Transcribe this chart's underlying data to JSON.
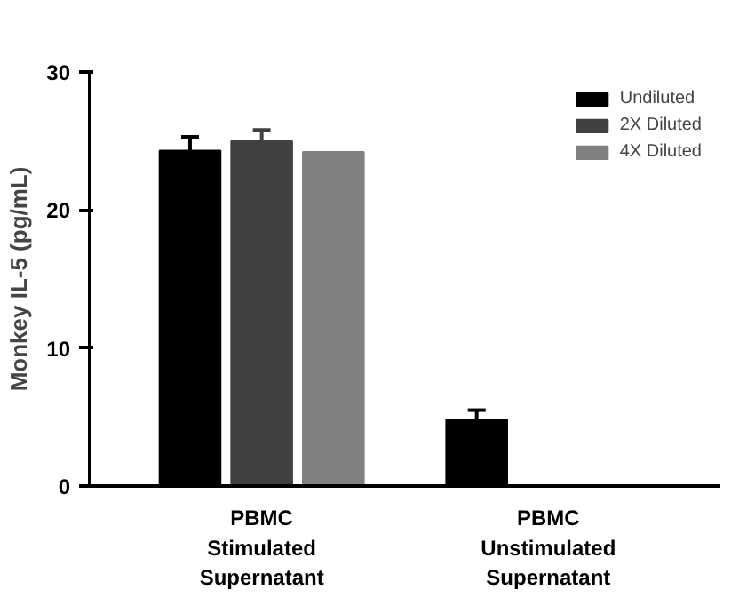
{
  "chart_data": {
    "type": "bar",
    "ylabel": "Monkey IL-5 (pg/mL)",
    "categories": [
      "PBMC\nStimulated\nSupernatant",
      "PBMC\nUnstimulated\nSupernatant"
    ],
    "series": [
      {
        "name": "Undiluted",
        "color": "#000000",
        "values": [
          24.3,
          4.8
        ],
        "errors": [
          [
            24.3,
            25.3
          ],
          [
            4.8,
            5.5
          ]
        ]
      },
      {
        "name": "2X Diluted",
        "color": "#404040",
        "values": [
          25.0,
          null
        ],
        "errors": [
          [
            25.0,
            25.8
          ],
          null
        ]
      },
      {
        "name": "4X Diluted",
        "color": "#808080",
        "values": [
          24.2,
          null
        ]
      }
    ],
    "ylim": [
      0,
      30
    ],
    "yticks": [
      0,
      10,
      20,
      30
    ],
    "grid": false,
    "legend": "top right"
  }
}
